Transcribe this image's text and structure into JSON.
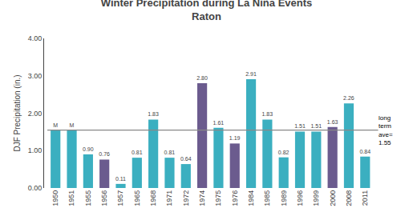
{
  "chart_data": {
    "type": "bar",
    "title": "Winter Precipitation during La Niña Events",
    "subtitle": "Raton",
    "ylabel": "DJF Precipitation (in.)",
    "categories": [
      "1950",
      "1951",
      "1955",
      "1956",
      "1957",
      "1965",
      "1968",
      "1971",
      "1972",
      "1974",
      "1975",
      "1976",
      "1984",
      "1985",
      "1989",
      "1996",
      "1999",
      "2000",
      "2008",
      "2011"
    ],
    "values": [
      1.55,
      1.55,
      0.9,
      0.76,
      0.11,
      0.81,
      1.83,
      0.81,
      0.64,
      2.8,
      1.61,
      1.19,
      2.91,
      1.83,
      0.82,
      1.51,
      1.51,
      1.63,
      2.26,
      0.84
    ],
    "value_labels": [
      "M",
      "M",
      "0.90",
      "0.76",
      "0.11",
      "0.81",
      "1.83",
      "0.81",
      "0.64",
      "2.80",
      "1.61",
      "1.19",
      "2.91",
      "1.83",
      "0.82",
      "1.51",
      "1.51",
      "1.63",
      "2.26",
      "0.84"
    ],
    "data_labels": true,
    "colors": [
      "#3BAFC0",
      "#3BAFC0",
      "#3BAFC0",
      "#6B5B8E",
      "#3BAFC0",
      "#3BAFC0",
      "#3BAFC0",
      "#3BAFC0",
      "#3BAFC0",
      "#6B5B8E",
      "#3BAFC0",
      "#6B5B8E",
      "#3BAFC0",
      "#3BAFC0",
      "#3BAFC0",
      "#3BAFC0",
      "#3BAFC0",
      "#6B5B8E",
      "#3BAFC0",
      "#3BAFC0"
    ],
    "average": {
      "value": 1.55,
      "color": "#888888",
      "label": "long\nterm\nave=\n1.55"
    },
    "ylim": [
      0,
      4.0
    ],
    "yticks": [
      {
        "value": 0,
        "label": "0.00"
      },
      {
        "value": 1,
        "label": "1.00"
      },
      {
        "value": 2,
        "label": "2.00"
      },
      {
        "value": 3,
        "label": "3.00"
      },
      {
        "value": 4,
        "label": "4.00"
      }
    ],
    "grid": false
  }
}
